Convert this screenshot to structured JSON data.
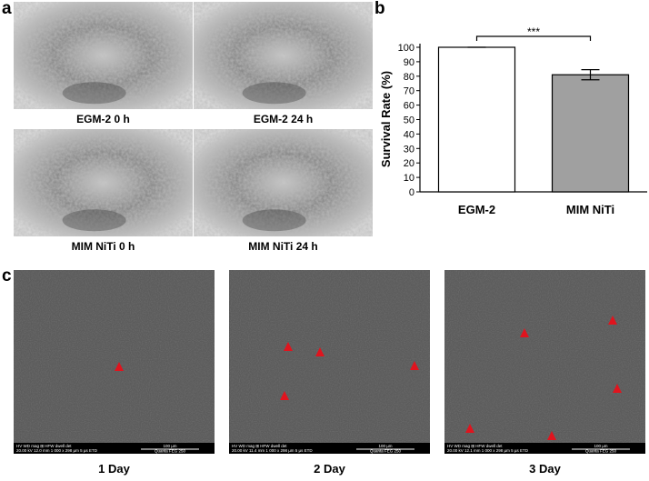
{
  "panel_labels": [
    "a",
    "b",
    "c"
  ],
  "micrographs": [
    {
      "caption": "EGM-2  0 h"
    },
    {
      "caption": "EGM-2  24 h"
    },
    {
      "caption": "MIM NiTi  0 h"
    },
    {
      "caption": "MIM NiTi  24 h"
    }
  ],
  "chart_data": {
    "type": "bar",
    "ylabel": "Survival Rate (%)",
    "categories": [
      "EGM-2",
      "MIM NiTi"
    ],
    "values": [
      100,
      81
    ],
    "errors": [
      0,
      3.5
    ],
    "colors": [
      "#ffffff",
      "#a0a0a0"
    ],
    "significance": "***",
    "ylim": [
      0,
      100
    ],
    "yticks": [
      0,
      10,
      20,
      30,
      40,
      50,
      60,
      70,
      80,
      90,
      100
    ]
  },
  "sem_images": [
    {
      "caption": "1 Day",
      "info_bar": "HV   WD   mag ⊞   HFW   dwell   det",
      "info_values": "20.00 kV  12.0 mm  1 000 x  298 µm  5 µs  ETD",
      "scale_bar": "100 µm",
      "instrument": "Quanta FEG 250"
    },
    {
      "caption": "2 Day",
      "info_bar": "HV   WD   mag ⊞   HFW   dwell   det",
      "info_values": "20.00 kV  11.4 mm  1 000 x  298 µm  5 µs  ETD",
      "scale_bar": "100 µm",
      "instrument": "Quanta FEG 250"
    },
    {
      "caption": "3 Day",
      "info_bar": "HV   WD   mag ⊞   HFW   dwell   det",
      "info_values": "20.00 kV  12.1 mm  1 000 x  298 µm  5 µs  ETD",
      "scale_bar": "100 µm",
      "instrument": "Quanta FEG 250"
    }
  ]
}
